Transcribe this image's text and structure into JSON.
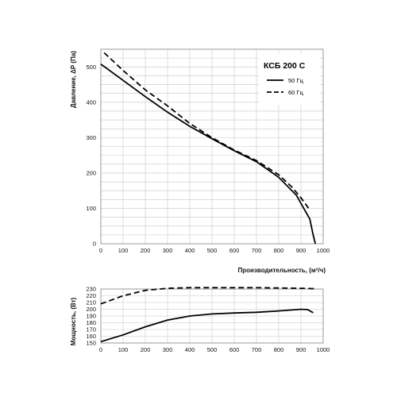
{
  "chart_data": [
    {
      "type": "line",
      "title": "КСБ 200 С",
      "xlabel": "Производительность, (м³/ч)",
      "ylabel": "Давление, ΔР (Па)",
      "xlim": [
        0,
        1000
      ],
      "ylim": [
        0,
        550
      ],
      "grid": true,
      "legend": "top-right",
      "x_ticks": [
        "0",
        "100",
        "200",
        "300",
        "400",
        "500",
        "600",
        "700",
        "800",
        "900",
        "1000"
      ],
      "y_ticks": [
        "0",
        "100",
        "200",
        "300",
        "400",
        "500"
      ],
      "series": [
        {
          "name": "50 Гц",
          "style": "solid",
          "x": [
            0,
            100,
            200,
            300,
            400,
            500,
            600,
            700,
            800,
            880,
            910,
            940,
            955,
            965
          ],
          "y": [
            508,
            462,
            416,
            372,
            332,
            297,
            263,
            232,
            188,
            137,
            103,
            70,
            25,
            0
          ]
        },
        {
          "name": "60 Гц",
          "style": "dashed",
          "x": [
            15,
            100,
            200,
            300,
            400,
            500,
            600,
            700,
            800,
            860,
            900,
            935
          ],
          "y": [
            540,
            490,
            435,
            390,
            340,
            300,
            265,
            235,
            195,
            160,
            130,
            100
          ]
        }
      ]
    },
    {
      "type": "line",
      "ylabel": "Мощность, (Вт)",
      "xlim": [
        0,
        1000
      ],
      "ylim": [
        150,
        230
      ],
      "grid": true,
      "x_ticks": [
        "0",
        "100",
        "200",
        "300",
        "400",
        "500",
        "600",
        "700",
        "800",
        "900",
        "1000"
      ],
      "y_ticks": [
        "150",
        "160",
        "170",
        "180",
        "190",
        "200",
        "210",
        "220",
        "230"
      ],
      "series": [
        {
          "style": "solid",
          "x": [
            0,
            100,
            200,
            300,
            400,
            500,
            600,
            700,
            800,
            900,
            930,
            955
          ],
          "y": [
            152,
            162,
            174,
            184,
            190,
            193,
            194.5,
            195.5,
            197.5,
            200,
            199.5,
            195
          ]
        },
        {
          "style": "dashed",
          "x": [
            0,
            100,
            200,
            300,
            400,
            500,
            600,
            700,
            800,
            900,
            960
          ],
          "y": [
            208,
            220,
            228,
            231,
            232,
            232,
            232,
            232,
            231.5,
            231,
            230.5
          ]
        }
      ]
    }
  ]
}
